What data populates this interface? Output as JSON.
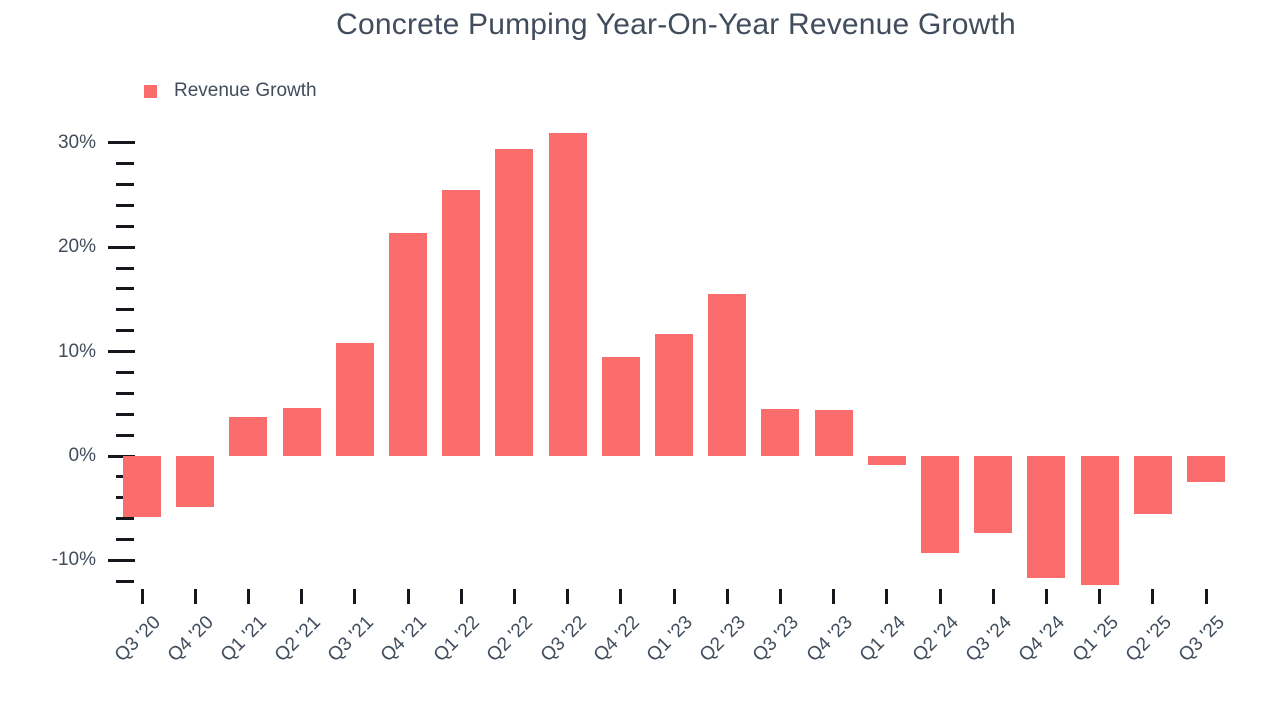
{
  "title": "Concrete Pumping Year-On-Year Revenue Growth",
  "legend": {
    "label": "Revenue Growth"
  },
  "colors": {
    "bar": "#FB6D6D",
    "text": "#414D5C",
    "tick": "#14171C",
    "background": "#FFFFFF"
  },
  "chart_data": {
    "type": "bar",
    "title": "Concrete Pumping Year-On-Year Revenue Growth",
    "categories": [
      "Q3 '20",
      "Q4 '20",
      "Q1 '21",
      "Q2 '21",
      "Q3 '21",
      "Q4 '21",
      "Q1 '22",
      "Q2 '22",
      "Q3 '22",
      "Q4 '22",
      "Q1 '23",
      "Q2 '23",
      "Q3 '23",
      "Q4 '23",
      "Q1 '24",
      "Q2 '24",
      "Q3 '24",
      "Q4 '24",
      "Q1 '25",
      "Q2 '25",
      "Q3 '25"
    ],
    "series": [
      {
        "name": "Revenue Growth",
        "values": [
          -5.8,
          -4.9,
          3.7,
          4.6,
          10.8,
          21.4,
          25.5,
          29.4,
          30.9,
          9.5,
          11.7,
          15.5,
          4.5,
          4.4,
          -0.9,
          -9.3,
          -7.4,
          -11.7,
          -12.4,
          -5.6,
          -2.5
        ]
      }
    ],
    "unit": "%",
    "xlabel": "",
    "ylabel": "",
    "ylim": [
      -12,
      32
    ],
    "y_major_ticks": [
      30,
      20,
      10,
      0,
      -10
    ],
    "y_tick_labels": [
      "30%",
      "20%",
      "10%",
      "0%",
      "-10%"
    ],
    "y_minor_tick_step": 2,
    "grid": false,
    "legend_position": "top-left",
    "bar_orientation": "vertical"
  }
}
